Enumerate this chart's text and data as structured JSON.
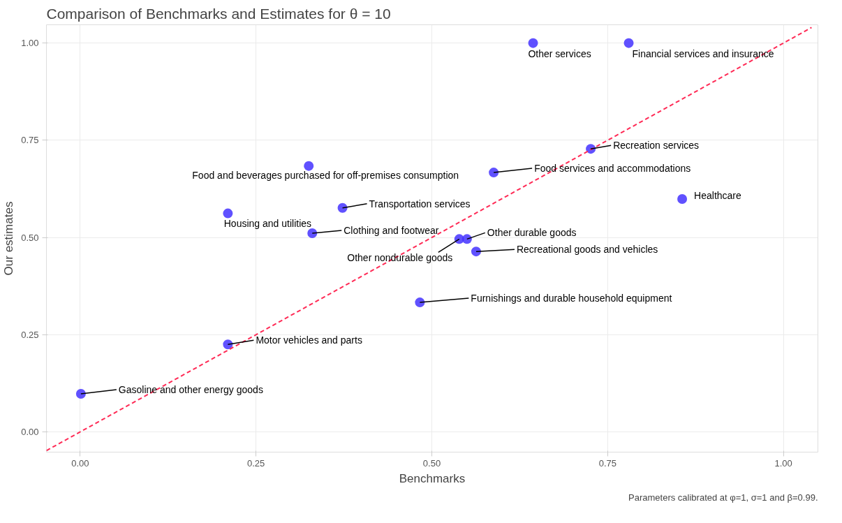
{
  "chart_data": {
    "type": "scatter",
    "title": "Comparison of Benchmarks and Estimates for θ = 10",
    "xlabel": "Benchmarks",
    "ylabel": "Our estimates",
    "xlim": [
      -0.048,
      1.049
    ],
    "ylim": [
      -0.052,
      1.047
    ],
    "xticks": [
      {
        "value": 0,
        "label": "0.00"
      },
      {
        "value": 0.25,
        "label": "0.25"
      },
      {
        "value": 0.5,
        "label": "0.50"
      },
      {
        "value": 0.75,
        "label": "0.75"
      },
      {
        "value": 1,
        "label": "1.00"
      }
    ],
    "yticks": [
      {
        "value": 0,
        "label": "0.00"
      },
      {
        "value": 0.25,
        "label": "0.25"
      },
      {
        "value": 0.5,
        "label": "0.50"
      },
      {
        "value": 0.75,
        "label": "0.75"
      },
      {
        "value": 1,
        "label": "1.00"
      }
    ],
    "grid": true,
    "marker": "circle",
    "series": [
      {
        "color": "#4433ff",
        "x": [
          0.001,
          0.21,
          0.21,
          0.325,
          0.33,
          0.373,
          0.483,
          0.539,
          0.55,
          0.563,
          0.588,
          0.644,
          0.726,
          0.78,
          0.856
        ],
        "values": [
          0.098,
          0.225,
          0.562,
          0.684,
          0.511,
          0.576,
          0.333,
          0.496,
          0.496,
          0.464,
          0.667,
          1.0,
          0.728,
          1.0,
          0.599
        ]
      },
      {
        "type": "line",
        "color": "#ff2a55",
        "line_style": "dashed",
        "marker": "none",
        "x": [
          -0.048,
          1.04
        ],
        "values": [
          -0.048,
          1.04
        ]
      }
    ],
    "annotations": [
      {
        "text": "Gasoline and other energy goods",
        "x": 0.001,
        "y": 0.098
      },
      {
        "text": "Motor vehicles and parts",
        "x": 0.21,
        "y": 0.225
      },
      {
        "text": "Housing and utilities",
        "x": 0.21,
        "y": 0.562
      },
      {
        "text": "Food and beverages purchased for off-premises consumption",
        "x": 0.325,
        "y": 0.684
      },
      {
        "text": "Clothing and footwear",
        "x": 0.33,
        "y": 0.511
      },
      {
        "text": "Transportation services",
        "x": 0.373,
        "y": 0.576
      },
      {
        "text": "Furnishings and durable household equipment",
        "x": 0.483,
        "y": 0.333
      },
      {
        "text": "Other nondurable goods",
        "x": 0.539,
        "y": 0.496
      },
      {
        "text": "Other durable goods",
        "x": 0.55,
        "y": 0.496
      },
      {
        "text": "Recreational goods and vehicles",
        "x": 0.563,
        "y": 0.464
      },
      {
        "text": "Food services and accommodations",
        "x": 0.588,
        "y": 0.667
      },
      {
        "text": "Other services",
        "x": 0.644,
        "y": 1.0
      },
      {
        "text": "Recreation services",
        "x": 0.726,
        "y": 0.728
      },
      {
        "text": "Financial services and insurance",
        "x": 0.78,
        "y": 1.0
      },
      {
        "text": "Healthcare",
        "x": 0.856,
        "y": 0.599
      },
      "Parameters calibrated at φ=1, σ=1 and β=0.99."
    ]
  }
}
